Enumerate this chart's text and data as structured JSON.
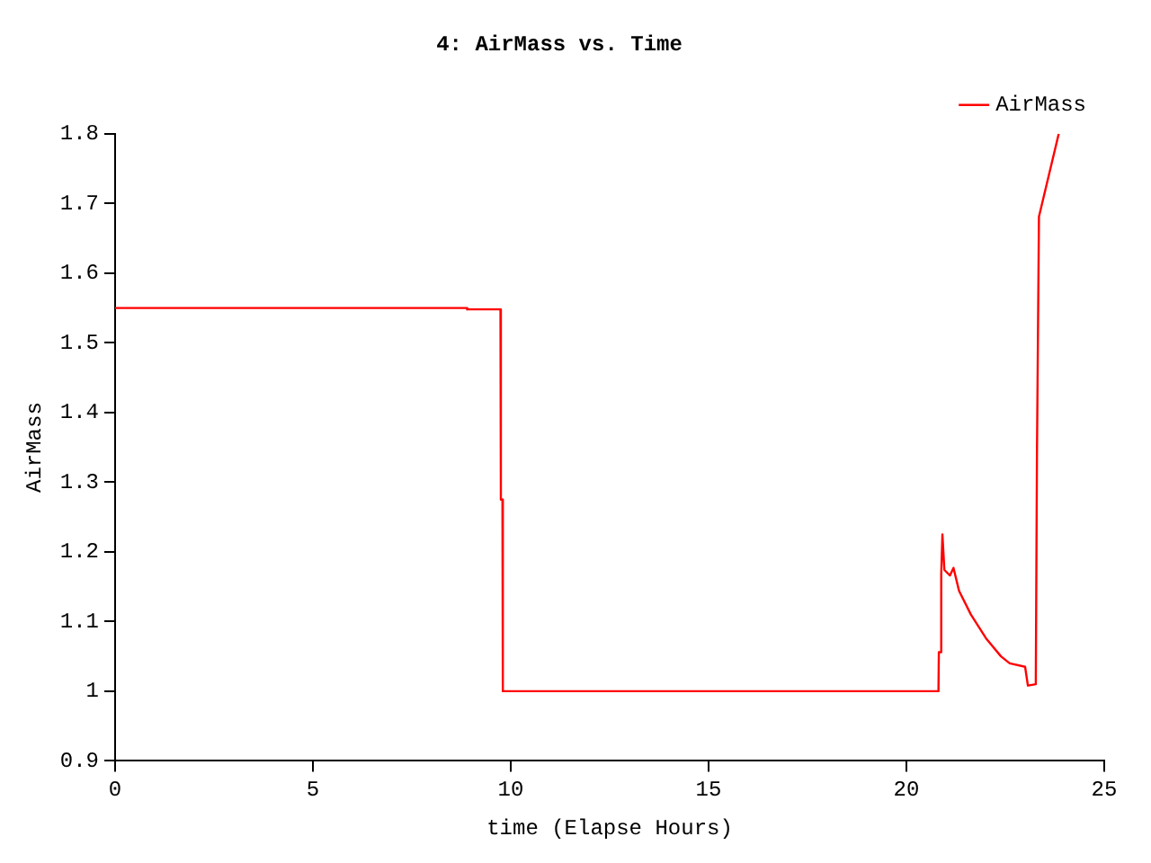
{
  "chart_data": {
    "type": "line",
    "title": "4: AirMass vs. Time",
    "xlabel": "time (Elapse Hours)",
    "ylabel": "AirMass",
    "series": [
      {
        "name": "AirMass",
        "color": "#ff0000",
        "x": [
          0,
          8.88,
          8.9,
          9.74,
          9.75,
          9.79,
          9.8,
          20.81,
          20.82,
          20.87,
          20.88,
          20.91,
          20.96,
          21.1,
          21.19,
          21.33,
          21.63,
          22.01,
          22.39,
          22.61,
          23.0,
          23.07,
          23.27,
          23.3,
          23.35,
          23.85
        ],
        "values": [
          1.55,
          1.55,
          1.548,
          1.548,
          1.275,
          1.275,
          1.0,
          1.0,
          1.056,
          1.056,
          1.168,
          1.225,
          1.174,
          1.166,
          1.177,
          1.144,
          1.11,
          1.076,
          1.05,
          1.04,
          1.035,
          1.008,
          1.01,
          1.343,
          1.681,
          1.8
        ]
      }
    ],
    "xlim": [
      0,
      25
    ],
    "xticks": [
      0,
      5,
      10,
      15,
      20,
      25
    ],
    "ylim": [
      0.9,
      1.8
    ],
    "yticks": [
      0.9,
      1,
      1.1,
      1.2,
      1.3,
      1.4,
      1.5,
      1.6,
      1.7,
      1.8
    ],
    "grid": false,
    "legend": "top right",
    "marker": "none",
    "line_style": "solid"
  }
}
